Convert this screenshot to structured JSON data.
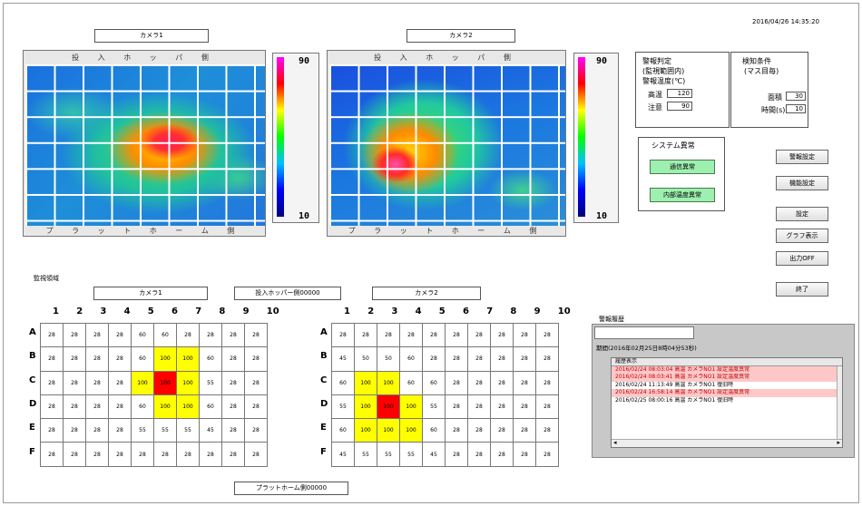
{
  "timestamp": "2016/04/26 14:35:20",
  "cameras": [
    {
      "label": "カメラ1",
      "top_label": "投 入 ホ ッ パ 側",
      "bottom_label": "プ ラ ッ ト ホ ー ム 側",
      "scale_max": "90",
      "scale_min": "10"
    },
    {
      "label": "カメラ2",
      "top_label": "投 入 ホ ッ パ 側",
      "bottom_label": "プ ラ ッ ト ホ ー ム 側",
      "scale_max": "90",
      "scale_min": "10"
    }
  ],
  "alarm_settings": {
    "title": "警報判定",
    "line2": "(監視範囲内)",
    "line3": "警報温度(℃)",
    "high_label": "高温",
    "high_value": "120",
    "warn_label": "注意",
    "warn_value": "90"
  },
  "detection": {
    "title": "検知条件",
    "line2": "(マス目毎)",
    "area_label": "面積",
    "area_value": "30",
    "time_label": "時間(s)",
    "time_value": "10"
  },
  "system_alarm": {
    "title": "システム異常",
    "btn1": "通信異常",
    "btn2": "内部温度異常"
  },
  "buttons": [
    "警報設定",
    "機能設定",
    "設定",
    "グラフ表示",
    "出力OFF",
    "終了"
  ],
  "monitor": {
    "title": "監視領域",
    "hopper_label": "投入ホッパー側00000",
    "platform_label": "プラットホーム側00000",
    "cols": [
      "1",
      "2",
      "3",
      "4",
      "5",
      "6",
      "7",
      "8",
      "9",
      "10"
    ],
    "rows": [
      "A",
      "B",
      "C",
      "D",
      "E",
      "F"
    ],
    "grid1": [
      [
        "28",
        "28",
        "28",
        "28",
        "60",
        "60",
        "28",
        "28",
        "28",
        "28"
      ],
      [
        "28",
        "28",
        "28",
        "28",
        "60",
        "100",
        "100",
        "60",
        "28",
        "28"
      ],
      [
        "28",
        "28",
        "28",
        "28",
        "100",
        "100",
        "100",
        "55",
        "28",
        "28"
      ],
      [
        "28",
        "28",
        "28",
        "28",
        "60",
        "100",
        "100",
        "60",
        "28",
        "28"
      ],
      [
        "28",
        "28",
        "28",
        "28",
        "55",
        "55",
        "55",
        "45",
        "28",
        "28"
      ],
      [
        "28",
        "28",
        "28",
        "28",
        "28",
        "28",
        "28",
        "28",
        "28",
        "28"
      ]
    ],
    "grid2": [
      [
        "28",
        "28",
        "28",
        "28",
        "28",
        "28",
        "28",
        "28",
        "28",
        "28"
      ],
      [
        "45",
        "50",
        "50",
        "60",
        "28",
        "28",
        "28",
        "28",
        "28",
        "28"
      ],
      [
        "60",
        "100",
        "100",
        "60",
        "60",
        "28",
        "28",
        "28",
        "28",
        "28"
      ],
      [
        "55",
        "100",
        "100",
        "100",
        "55",
        "28",
        "28",
        "28",
        "28",
        "28"
      ],
      [
        "60",
        "100",
        "100",
        "100",
        "60",
        "28",
        "28",
        "28",
        "28",
        "28"
      ],
      [
        "45",
        "55",
        "55",
        "55",
        "45",
        "28",
        "28",
        "28",
        "28",
        "28"
      ]
    ]
  },
  "history": {
    "title": "警報履歴",
    "period": "期間(2016年02月25日8時04分53秒)",
    "header": "履歴表示",
    "rows": [
      {
        "text": "2016/02/24 08:03:04 高温 カメラNO1 設定温度異常",
        "state": "hl"
      },
      {
        "text": "2016/02/24 08:03:41 高温 カメラNO1 設定温度異常",
        "state": "hl"
      },
      {
        "text": "2016/02/24 11:13:49 高温 カメラNO1 復旧時",
        "state": "nm"
      },
      {
        "text": "2016/02/24 16:58:14 高温 カメラNO1 設定温度異常",
        "state": "hl"
      },
      {
        "text": "2016/02/25 08:00:16 高温 カメラNO1 復旧時",
        "state": "nm"
      }
    ]
  }
}
